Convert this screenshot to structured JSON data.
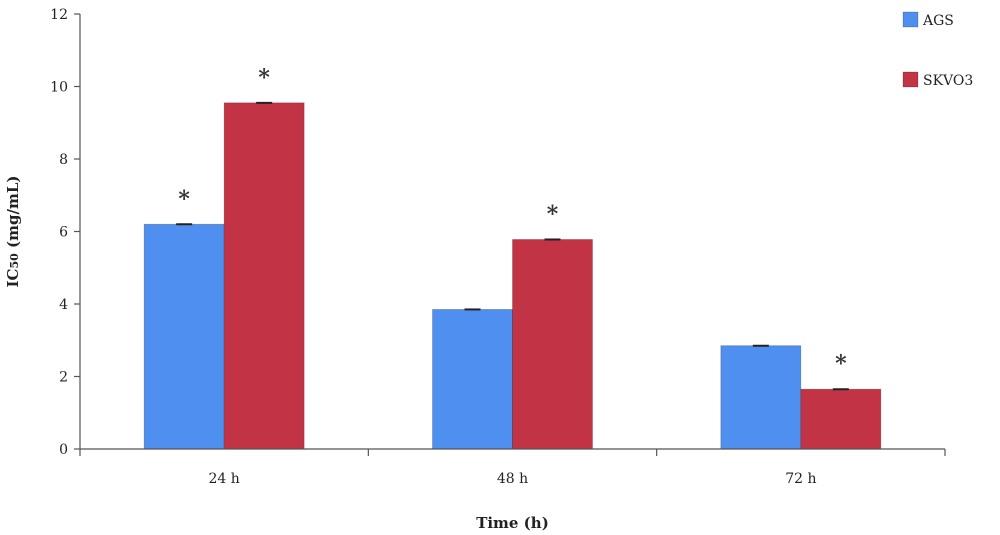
{
  "chart_data": {
    "type": "bar",
    "categories": [
      "24 h",
      "48 h",
      "72 h"
    ],
    "series": [
      {
        "name": "AGS",
        "color": "#4f8ff0",
        "values": [
          6.2,
          3.85,
          2.85
        ],
        "significant": [
          true,
          false,
          false
        ]
      },
      {
        "name": "SKVO3",
        "color": "#c33346",
        "values": [
          9.55,
          5.78,
          1.65
        ],
        "significant": [
          true,
          true,
          true
        ]
      }
    ],
    "significance_marker": "*",
    "xlabel": "Time (h)",
    "ylabel": "IC50 (mg/mL)",
    "ylabel_parts": {
      "main": "IC",
      "sub": "50",
      "rest": " (mg/mL)"
    },
    "ylim": [
      0,
      12
    ],
    "yticks": [
      0,
      2,
      4,
      6,
      8,
      10,
      12
    ],
    "grid": false,
    "legend_position": "top-right"
  }
}
